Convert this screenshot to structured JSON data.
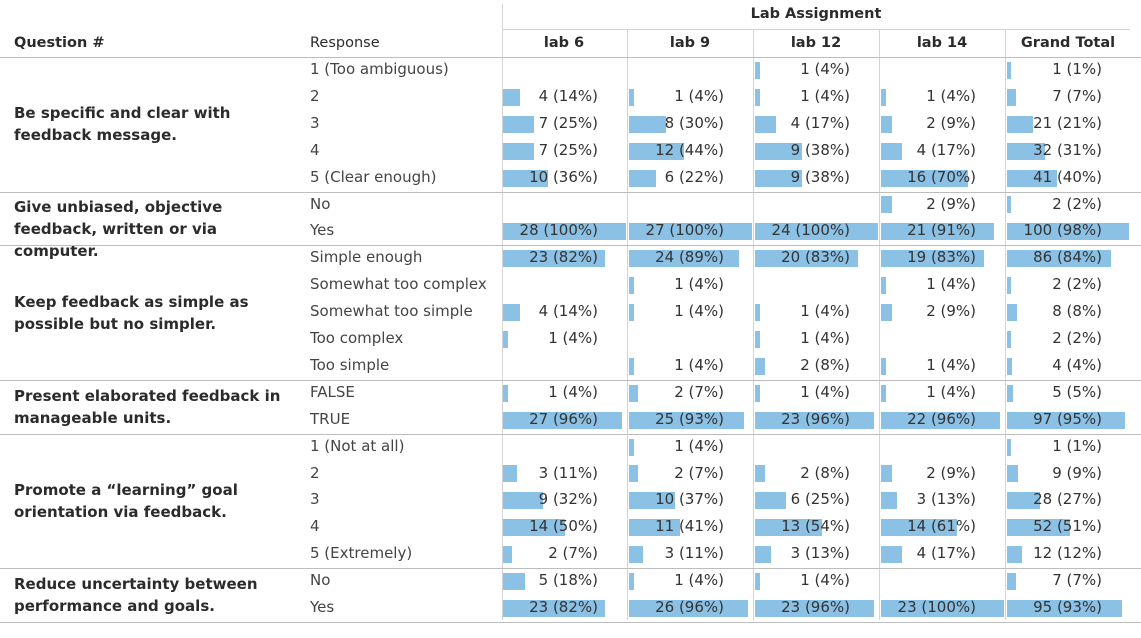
{
  "header": {
    "column_group": "Lab Assignment",
    "question_col": "Question #",
    "response_col": "Response",
    "columns": [
      "lab 6",
      "lab 9",
      "lab 12",
      "lab 14",
      "Grand Total"
    ]
  },
  "chart_data": {
    "type": "table",
    "value_format": "count (percent of column within question)",
    "columns": [
      "lab 6",
      "lab 9",
      "lab 12",
      "lab 14",
      "Grand Total"
    ],
    "groups": [
      {
        "question": "Be specific and clear with feedback message.",
        "rows": [
          {
            "response": "1 (Too ambiguous)",
            "cells": [
              null,
              null,
              {
                "count": 1,
                "pct": 4
              },
              null,
              {
                "count": 1,
                "pct": 1
              }
            ]
          },
          {
            "response": "2",
            "cells": [
              {
                "count": 4,
                "pct": 14
              },
              {
                "count": 1,
                "pct": 4
              },
              {
                "count": 1,
                "pct": 4
              },
              {
                "count": 1,
                "pct": 4
              },
              {
                "count": 7,
                "pct": 7
              }
            ]
          },
          {
            "response": "3",
            "cells": [
              {
                "count": 7,
                "pct": 25
              },
              {
                "count": 8,
                "pct": 30
              },
              {
                "count": 4,
                "pct": 17
              },
              {
                "count": 2,
                "pct": 9
              },
              {
                "count": 21,
                "pct": 21
              }
            ]
          },
          {
            "response": "4",
            "cells": [
              {
                "count": 7,
                "pct": 25
              },
              {
                "count": 12,
                "pct": 44
              },
              {
                "count": 9,
                "pct": 38
              },
              {
                "count": 4,
                "pct": 17
              },
              {
                "count": 32,
                "pct": 31
              }
            ]
          },
          {
            "response": "5 (Clear enough)",
            "cells": [
              {
                "count": 10,
                "pct": 36
              },
              {
                "count": 6,
                "pct": 22
              },
              {
                "count": 9,
                "pct": 38
              },
              {
                "count": 16,
                "pct": 70
              },
              {
                "count": 41,
                "pct": 40
              }
            ]
          }
        ]
      },
      {
        "question": "Give unbiased, objective feedback, written or via computer.",
        "rows": [
          {
            "response": "No",
            "cells": [
              null,
              null,
              null,
              {
                "count": 2,
                "pct": 9
              },
              {
                "count": 2,
                "pct": 2
              }
            ]
          },
          {
            "response": "Yes",
            "cells": [
              {
                "count": 28,
                "pct": 100
              },
              {
                "count": 27,
                "pct": 100
              },
              {
                "count": 24,
                "pct": 100
              },
              {
                "count": 21,
                "pct": 91
              },
              {
                "count": 100,
                "pct": 98
              }
            ]
          }
        ]
      },
      {
        "question": "Keep feedback as simple as possible but no simpler.",
        "rows": [
          {
            "response": "Simple enough",
            "cells": [
              {
                "count": 23,
                "pct": 82
              },
              {
                "count": 24,
                "pct": 89
              },
              {
                "count": 20,
                "pct": 83
              },
              {
                "count": 19,
                "pct": 83
              },
              {
                "count": 86,
                "pct": 84
              }
            ]
          },
          {
            "response": "Somewhat too complex",
            "cells": [
              null,
              {
                "count": 1,
                "pct": 4
              },
              null,
              {
                "count": 1,
                "pct": 4
              },
              {
                "count": 2,
                "pct": 2
              }
            ]
          },
          {
            "response": "Somewhat too simple",
            "cells": [
              {
                "count": 4,
                "pct": 14
              },
              {
                "count": 1,
                "pct": 4
              },
              {
                "count": 1,
                "pct": 4
              },
              {
                "count": 2,
                "pct": 9
              },
              {
                "count": 8,
                "pct": 8
              }
            ]
          },
          {
            "response": "Too complex",
            "cells": [
              {
                "count": 1,
                "pct": 4
              },
              null,
              {
                "count": 1,
                "pct": 4
              },
              null,
              {
                "count": 2,
                "pct": 2
              }
            ]
          },
          {
            "response": "Too simple",
            "cells": [
              null,
              {
                "count": 1,
                "pct": 4
              },
              {
                "count": 2,
                "pct": 8
              },
              {
                "count": 1,
                "pct": 4
              },
              {
                "count": 4,
                "pct": 4
              }
            ]
          }
        ]
      },
      {
        "question": "Present elaborated feedback in manageable units.",
        "rows": [
          {
            "response": "FALSE",
            "cells": [
              {
                "count": 1,
                "pct": 4
              },
              {
                "count": 2,
                "pct": 7
              },
              {
                "count": 1,
                "pct": 4
              },
              {
                "count": 1,
                "pct": 4
              },
              {
                "count": 5,
                "pct": 5
              }
            ]
          },
          {
            "response": "TRUE",
            "cells": [
              {
                "count": 27,
                "pct": 96
              },
              {
                "count": 25,
                "pct": 93
              },
              {
                "count": 23,
                "pct": 96
              },
              {
                "count": 22,
                "pct": 96
              },
              {
                "count": 97,
                "pct": 95
              }
            ]
          }
        ]
      },
      {
        "question": "Promote a “learning” goal orientation via feedback.",
        "rows": [
          {
            "response": "1 (Not at all)",
            "cells": [
              null,
              {
                "count": 1,
                "pct": 4
              },
              null,
              null,
              {
                "count": 1,
                "pct": 1
              }
            ]
          },
          {
            "response": "2",
            "cells": [
              {
                "count": 3,
                "pct": 11
              },
              {
                "count": 2,
                "pct": 7
              },
              {
                "count": 2,
                "pct": 8
              },
              {
                "count": 2,
                "pct": 9
              },
              {
                "count": 9,
                "pct": 9
              }
            ]
          },
          {
            "response": "3",
            "cells": [
              {
                "count": 9,
                "pct": 32
              },
              {
                "count": 10,
                "pct": 37
              },
              {
                "count": 6,
                "pct": 25
              },
              {
                "count": 3,
                "pct": 13
              },
              {
                "count": 28,
                "pct": 27
              }
            ]
          },
          {
            "response": "4",
            "cells": [
              {
                "count": 14,
                "pct": 50
              },
              {
                "count": 11,
                "pct": 41
              },
              {
                "count": 13,
                "pct": 54
              },
              {
                "count": 14,
                "pct": 61
              },
              {
                "count": 52,
                "pct": 51
              }
            ]
          },
          {
            "response": "5 (Extremely)",
            "cells": [
              {
                "count": 2,
                "pct": 7
              },
              {
                "count": 3,
                "pct": 11
              },
              {
                "count": 3,
                "pct": 13
              },
              {
                "count": 4,
                "pct": 17
              },
              {
                "count": 12,
                "pct": 12
              }
            ]
          }
        ]
      },
      {
        "question": "Reduce uncertainty between performance and goals.",
        "rows": [
          {
            "response": "No",
            "cells": [
              {
                "count": 5,
                "pct": 18
              },
              {
                "count": 1,
                "pct": 4
              },
              {
                "count": 1,
                "pct": 4
              },
              null,
              {
                "count": 7,
                "pct": 7
              }
            ]
          },
          {
            "response": "Yes",
            "cells": [
              {
                "count": 23,
                "pct": 82
              },
              {
                "count": 26,
                "pct": 96
              },
              {
                "count": 23,
                "pct": 96
              },
              {
                "count": 23,
                "pct": 100
              },
              {
                "count": 95,
                "pct": 93
              }
            ]
          }
        ]
      }
    ],
    "bar_color": "#8cc1e6"
  }
}
